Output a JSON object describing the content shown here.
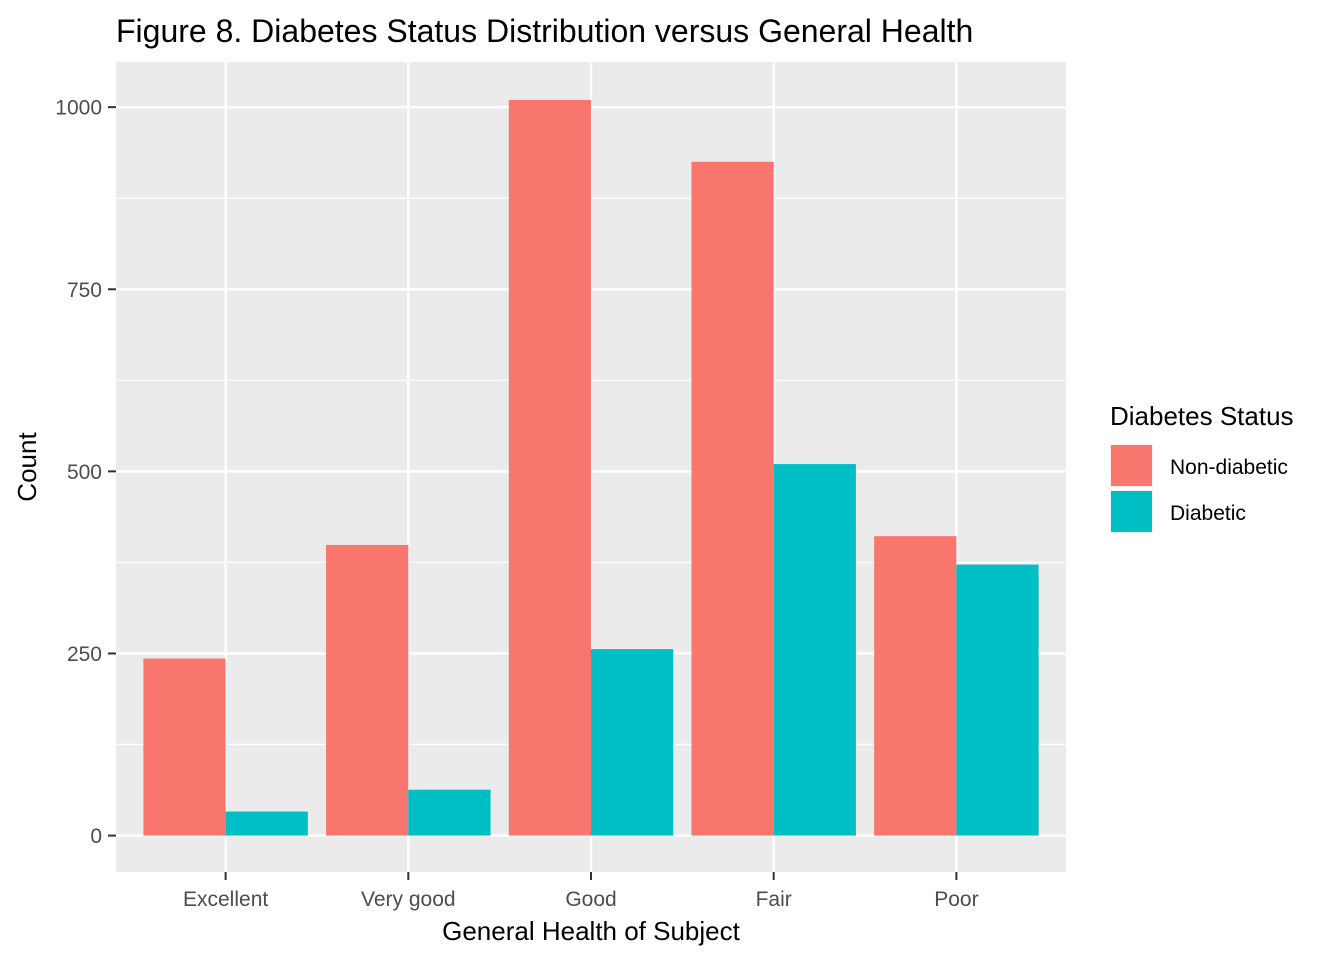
{
  "chart_data": {
    "type": "bar",
    "title": "Figure 8. Diabetes Status Distribution versus General Health",
    "xlabel": "General Health of Subject",
    "ylabel": "Count",
    "categories": [
      "Excellent",
      "Very good",
      "Good",
      "Fair",
      "Poor"
    ],
    "series": [
      {
        "name": "Non-diabetic",
        "color": "#F8766D",
        "values": [
          243,
          399,
          1010,
          925,
          411
        ]
      },
      {
        "name": "Diabetic",
        "color": "#00BFC4",
        "values": [
          33,
          63,
          256,
          510,
          372
        ]
      }
    ],
    "ylim": [
      -50,
      1062
    ],
    "yticks": [
      0,
      250,
      500,
      750,
      1000
    ],
    "grid": true,
    "legend": {
      "title": "Diabetes Status",
      "position": "right"
    },
    "panel_background": "#EBEBEB"
  }
}
